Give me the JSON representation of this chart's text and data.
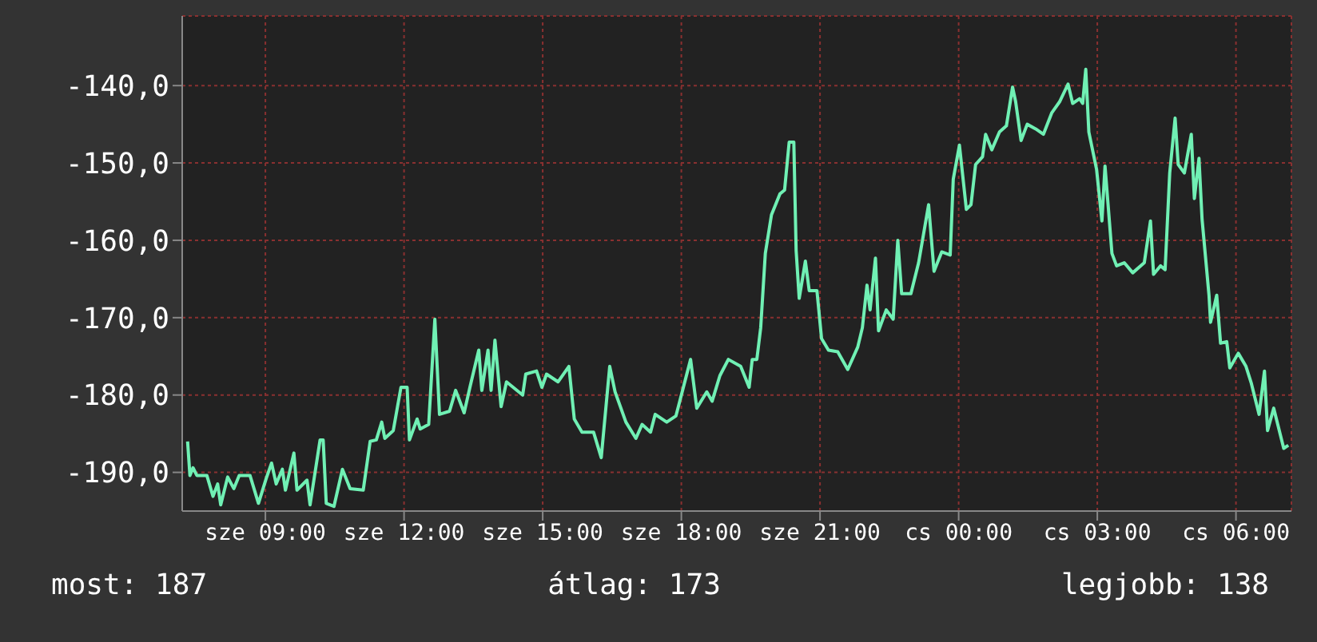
{
  "chart_data": {
    "type": "line",
    "x": [
      "--01-03T07:19",
      "--01-03T07:22",
      "--01-03T07:26",
      "--01-03T07:31",
      "--01-03T07:44",
      "--01-03T07:52",
      "--01-03T07:58",
      "--01-03T08:02",
      "--01-03T08:11",
      "--01-03T08:19",
      "--01-03T08:26",
      "--01-03T08:40",
      "--01-03T08:51",
      "--01-03T09:01",
      "--01-03T09:08",
      "--01-03T09:14",
      "--01-03T09:22",
      "--01-03T09:26",
      "--01-03T09:37",
      "--01-03T09:41",
      "--01-03T09:54",
      "--01-03T09:58",
      "--01-03T10:11",
      "--01-03T10:15",
      "--01-03T10:19",
      "--01-03T10:29",
      "--01-03T10:40",
      "--01-03T10:50",
      "--01-03T11:07",
      "--01-03T11:16",
      "--01-03T11:24",
      "--01-03T11:31",
      "--01-03T11:35",
      "--01-03T11:46",
      "--01-03T11:56",
      "--01-03T12:04",
      "--01-03T12:07",
      "--01-03T12:17",
      "--01-03T12:21",
      "--01-03T12:32",
      "--01-03T12:40",
      "--01-03T12:46",
      "--01-03T12:59",
      "--01-03T13:07",
      "--01-03T13:18",
      "--01-03T13:26",
      "--01-03T13:37",
      "--01-03T13:41",
      "--01-03T13:49",
      "--01-03T13:53",
      "--01-03T13:58",
      "--01-03T14:06",
      "--01-03T14:13",
      "--01-03T14:34",
      "--01-03T14:38",
      "--01-03T14:52",
      "--01-03T14:59",
      "--01-03T15:05",
      "--01-03T15:20",
      "--01-03T15:34",
      "--01-03T15:41",
      "--01-03T15:51",
      "--01-03T16:06",
      "--01-03T16:16",
      "--01-03T16:27",
      "--01-03T16:34",
      "--01-03T16:48",
      "--01-03T17:01",
      "--01-03T17:09",
      "--01-03T17:20",
      "--01-03T17:26",
      "--01-03T17:41",
      "--01-03T17:53",
      "--01-03T18:12",
      "--01-03T18:20",
      "--01-03T18:33",
      "--01-03T18:40",
      "--01-03T18:50",
      "--01-03T19:01",
      "--01-03T19:17",
      "--01-03T19:28",
      "--01-03T19:32",
      "--01-03T19:38",
      "--01-03T19:43",
      "--01-03T19:49",
      "--01-03T19:57",
      "--01-03T20:08",
      "--01-03T20:14",
      "--01-03T20:20",
      "--01-03T20:26",
      "--01-03T20:29",
      "--01-03T20:33",
      "--01-03T20:41",
      "--01-03T20:46",
      "--01-03T20:56",
      "--01-03T21:02",
      "--01-03T21:11",
      "--01-03T21:23",
      "--01-03T21:36",
      "--01-03T21:49",
      "--01-03T21:55",
      "--01-03T22:01",
      "--01-03T22:05",
      "--01-03T22:12",
      "--01-03T22:16",
      "--01-03T22:26",
      "--01-03T22:35",
      "--01-03T22:41",
      "--01-03T22:46",
      "--01-03T22:58",
      "--01-03T23:08",
      "--01-03T23:21",
      "--01-03T23:28",
      "--01-03T23:38",
      "--01-03T23:49",
      "--01-03T23:53",
      "--01-04T00:01",
      "--01-04T00:10",
      "--01-04T00:16",
      "--01-04T00:22",
      "--01-04T00:31",
      "--01-04T00:35",
      "--01-04T00:43",
      "--01-04T00:53",
      "--01-04T01:02",
      "--01-04T01:10",
      "--01-04T01:14",
      "--01-04T01:21",
      "--01-04T01:29",
      "--01-04T01:40",
      "--01-04T01:50",
      "--01-04T02:01",
      "--01-04T02:11",
      "--01-04T02:22",
      "--01-04T02:28",
      "--01-04T02:37",
      "--01-04T02:41",
      "--01-04T02:45",
      "--01-04T02:49",
      "--01-04T02:59",
      "--01-04T03:06",
      "--01-04T03:10",
      "--01-04T03:19",
      "--01-04T03:25",
      "--01-04T03:35",
      "--01-04T03:46",
      "--01-04T04:01",
      "--01-04T04:09",
      "--01-04T04:13",
      "--01-04T04:22",
      "--01-04T04:28",
      "--01-04T04:34",
      "--01-04T04:41",
      "--01-04T04:45",
      "--01-04T04:53",
      "--01-04T05:02",
      "--01-04T05:06",
      "--01-04T05:12",
      "--01-04T05:16",
      "--01-04T05:25",
      "--01-04T05:27",
      "--01-04T05:35",
      "--01-04T05:40",
      "--01-04T05:48",
      "--01-04T05:52",
      "--01-04T06:03",
      "--01-04T06:13",
      "--01-04T06:20",
      "--01-04T06:30",
      "--01-04T06:37",
      "--01-04T06:41",
      "--01-04T06:49",
      "--01-04T07:02",
      "--01-04T07:08"
    ],
    "series": [
      {
        "color": "#70f0b4",
        "values": [
          -186,
          -190.4,
          -189.4,
          -190.4,
          -190.4,
          -193.1,
          -191.5,
          -194.2,
          -190.6,
          -192.1,
          -190.4,
          -190.4,
          -194,
          -190.8,
          -188.8,
          -191.5,
          -189.6,
          -192.3,
          -187.5,
          -192.3,
          -191,
          -194.2,
          -185.8,
          -185.8,
          -194,
          -194.4,
          -189.6,
          -192.1,
          -192.3,
          -186,
          -185.8,
          -183.5,
          -185.6,
          -184.6,
          -179,
          -179,
          -185.8,
          -183.1,
          -184.4,
          -183.8,
          -170.2,
          -182.5,
          -182.1,
          -179.4,
          -182.3,
          -178.8,
          -174.2,
          -179.4,
          -174.2,
          -179.4,
          -172.9,
          -181.5,
          -178.3,
          -180,
          -177.3,
          -176.9,
          -179,
          -177.3,
          -178.3,
          -176.3,
          -183.1,
          -184.8,
          -184.8,
          -188.1,
          -176.3,
          -179.6,
          -183.5,
          -185.6,
          -183.8,
          -184.8,
          -182.5,
          -183.5,
          -182.7,
          -175.4,
          -181.7,
          -179.6,
          -180.8,
          -177.5,
          -175.4,
          -176.3,
          -179,
          -175.4,
          -175.4,
          -171.3,
          -161.7,
          -156.7,
          -154,
          -153.5,
          -147.3,
          -147.3,
          -161.3,
          -167.5,
          -162.7,
          -166.5,
          -166.5,
          -172.7,
          -174.2,
          -174.4,
          -176.7,
          -173.8,
          -171.3,
          -165.8,
          -169,
          -162.3,
          -171.7,
          -169,
          -170.2,
          -160,
          -166.9,
          -166.9,
          -162.9,
          -155.4,
          -164,
          -161.5,
          -161.9,
          -152.1,
          -147.7,
          -156,
          -155.4,
          -150.2,
          -149.2,
          -146.3,
          -148.3,
          -146,
          -145.2,
          -140.2,
          -142.1,
          -147.1,
          -145,
          -145.6,
          -146.3,
          -143.5,
          -142.1,
          -139.8,
          -142.3,
          -141.7,
          -142.3,
          -137.9,
          -146,
          -150.8,
          -157.5,
          -150.4,
          -161.7,
          -163.3,
          -162.9,
          -164.2,
          -162.9,
          -157.5,
          -164.4,
          -163.3,
          -163.8,
          -151.3,
          -144.2,
          -150.2,
          -151.3,
          -146.3,
          -154.6,
          -149.4,
          -157.3,
          -167.1,
          -170.6,
          -167.1,
          -173.3,
          -173.1,
          -176.5,
          -174.6,
          -176.3,
          -178.5,
          -182.5,
          -176.9,
          -184.6,
          -181.7,
          -186.9,
          -186.5
        ]
      }
    ],
    "xlim": [
      "--01-03T07:12",
      "--01-04T07:12"
    ],
    "xticks": [
      {
        "value": "--01-03T09:00",
        "label": "sze 09:00"
      },
      {
        "value": "--01-03T12:00",
        "label": "sze 12:00"
      },
      {
        "value": "--01-03T15:00",
        "label": "sze 15:00"
      },
      {
        "value": "--01-03T18:00",
        "label": "sze 18:00"
      },
      {
        "value": "--01-03T21:00",
        "label": "sze 21:00"
      },
      {
        "value": "--01-04T00:00",
        "label": "cs 00:00"
      },
      {
        "value": "--01-04T03:00",
        "label": "cs 03:00"
      },
      {
        "value": "--01-04T06:00",
        "label": "cs 06:00"
      }
    ],
    "ylim": [
      -195,
      -131
    ],
    "yticks": [
      {
        "value": -190,
        "label": "-190,0"
      },
      {
        "value": -180,
        "label": "-180,0"
      },
      {
        "value": -170,
        "label": "-170,0"
      },
      {
        "value": -160,
        "label": "-160,0"
      },
      {
        "value": -150,
        "label": "-150,0"
      },
      {
        "value": -140,
        "label": "-140,0"
      }
    ],
    "grid": true,
    "annotations": [
      "most: 187",
      "átlag: 173",
      "legjobb: 138"
    ]
  }
}
